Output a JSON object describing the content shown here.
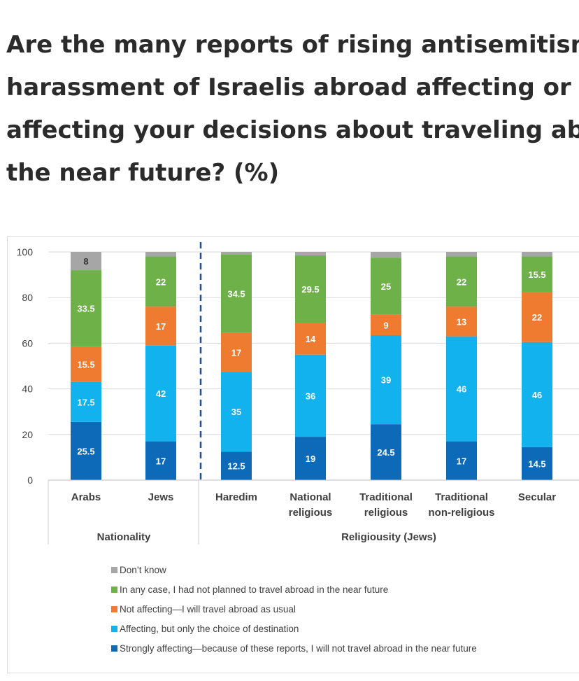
{
  "title_lines": [
    "Are the many reports of rising antisemitism and",
    "harassment of Israelis abroad affecting or not",
    "affecting your decisions about traveling abroad ir",
    "the near future? (%)"
  ],
  "chart_data": {
    "type": "bar",
    "stacked": true,
    "categories": [
      "Arabs",
      "Jews",
      "Haredim",
      "National religious",
      "Traditional religious",
      "Traditional non-religious",
      "Secular"
    ],
    "category_lines": [
      [
        "Arabs"
      ],
      [
        "Jews"
      ],
      [
        "Haredim"
      ],
      [
        "National",
        "religious"
      ],
      [
        "Traditional",
        "religious"
      ],
      [
        "Traditional",
        "non-religious"
      ],
      [
        "Secular"
      ]
    ],
    "groups": [
      {
        "label": "Nationality",
        "categories": [
          "Arabs",
          "Jews"
        ]
      },
      {
        "label": "Religiousity (Jews)",
        "categories": [
          "Haredim",
          "National religious",
          "Traditional religious",
          "Traditional non-religious",
          "Secular"
        ]
      }
    ],
    "ylim": [
      0,
      100
    ],
    "yticks": [
      0,
      20,
      40,
      60,
      80,
      100
    ],
    "grid": true,
    "legend_position": "bottom",
    "series": [
      {
        "name": "Strongly affecting—because of these reports, I will not travel abroad in the near future",
        "color": "#0d6ab8",
        "values": [
          25.5,
          17,
          12.5,
          19,
          24.5,
          17,
          14.5
        ],
        "labels": [
          "25.5",
          "17",
          "12.5",
          "19",
          "24.5",
          "17",
          "14.5"
        ]
      },
      {
        "name": "Affecting, but only the choice of destination",
        "color": "#12b2ee",
        "values": [
          17.5,
          42,
          35,
          36,
          39,
          46,
          46
        ],
        "labels": [
          "17.5",
          "42",
          "35",
          "36",
          "39",
          "46",
          "46"
        ]
      },
      {
        "name": "Not affecting—I will travel abroad as usual",
        "color": "#ee7b2f",
        "values": [
          15.5,
          17,
          17,
          14,
          9,
          13,
          22
        ],
        "labels": [
          "15.5",
          "17",
          "17",
          "14",
          "9",
          "13",
          "22"
        ]
      },
      {
        "name": "In any case, I had not planned to travel abroad in the near future",
        "color": "#6db148",
        "values": [
          33.5,
          22,
          34.5,
          29.5,
          25,
          22,
          15.5
        ],
        "labels": [
          "33.5",
          "22",
          "34.5",
          "29.5",
          "25",
          "22",
          "15.5"
        ]
      },
      {
        "name": "Don’t know",
        "color": "#a6a6a6",
        "values": [
          8,
          2,
          1,
          1.5,
          2.5,
          2,
          2
        ],
        "labels": [
          "8",
          "",
          "",
          "",
          "",
          "",
          ""
        ]
      }
    ],
    "legend_order": [
      4,
      3,
      2,
      1,
      0
    ]
  }
}
